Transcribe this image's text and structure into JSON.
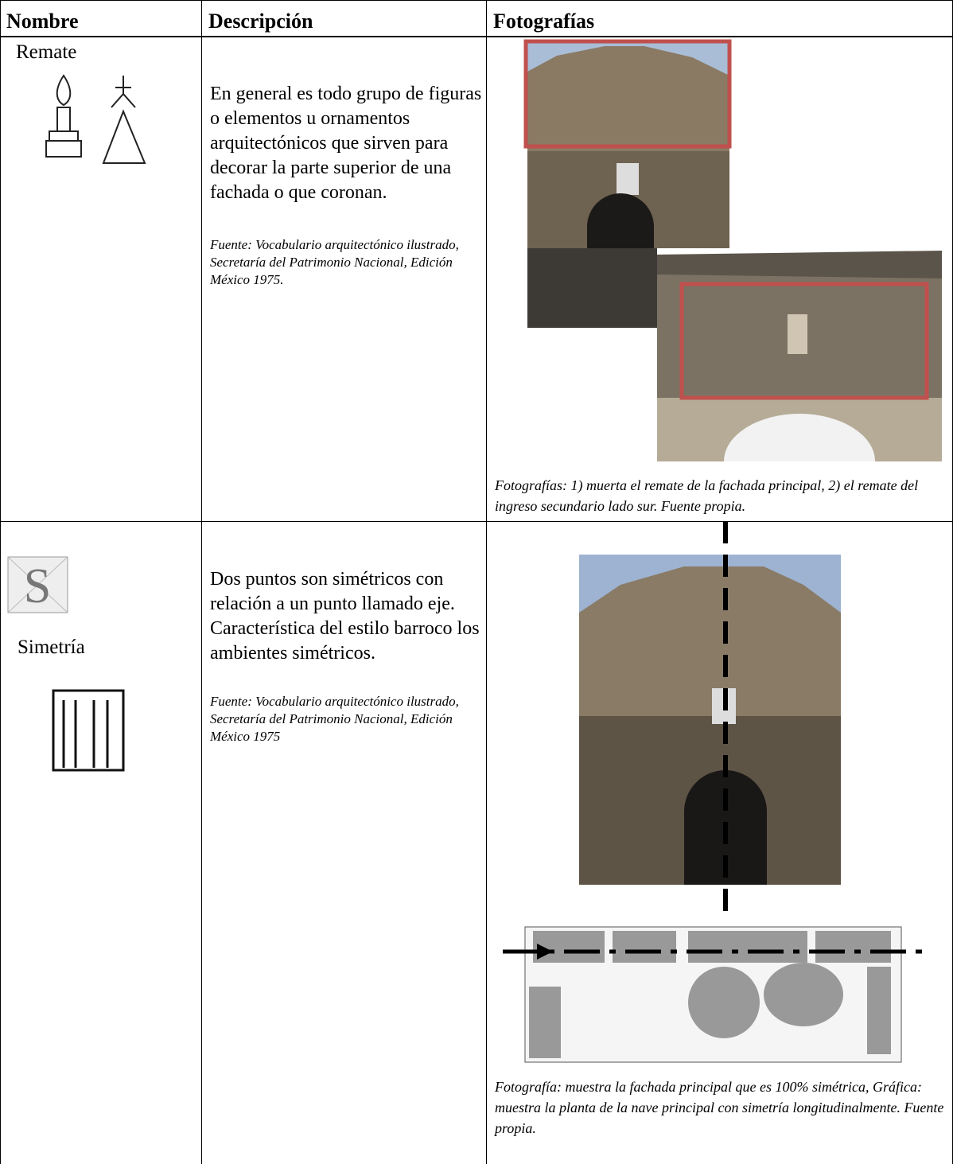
{
  "table": {
    "headers": [
      "Nombre",
      "Descripción",
      "Fotografías"
    ],
    "rows": [
      {
        "name": "Remate",
        "description": "En general es todo grupo de figuras o elementos u ornamentos arquitectónicos que sirven para decorar la parte superior de una fachada o que coronan.",
        "source": "Fuente: Vocabulario arquitectónico ilustrado, Secretaría del Patrimonio Nacional, Edición México 1975.",
        "caption": "Fotografías: 1) muerta el remate de la fachada principal, 2) el remate del ingreso secundario lado sur.  Fuente propia."
      },
      {
        "name": "Simetría",
        "description": "Dos puntos son simétricos con relación a un punto llamado eje. Característica del estilo barroco los ambientes simétricos.",
        "source": "Fuente: Vocabulario arquitectónico ilustrado, Secretaría del Patrimonio Nacional, Edición México 1975",
        "caption": "Fotografía: muestra la fachada principal que es 100% simétrica, Gráfica: muestra la planta de la nave principal con simetría longitudinalmente.  Fuente propia."
      }
    ]
  }
}
